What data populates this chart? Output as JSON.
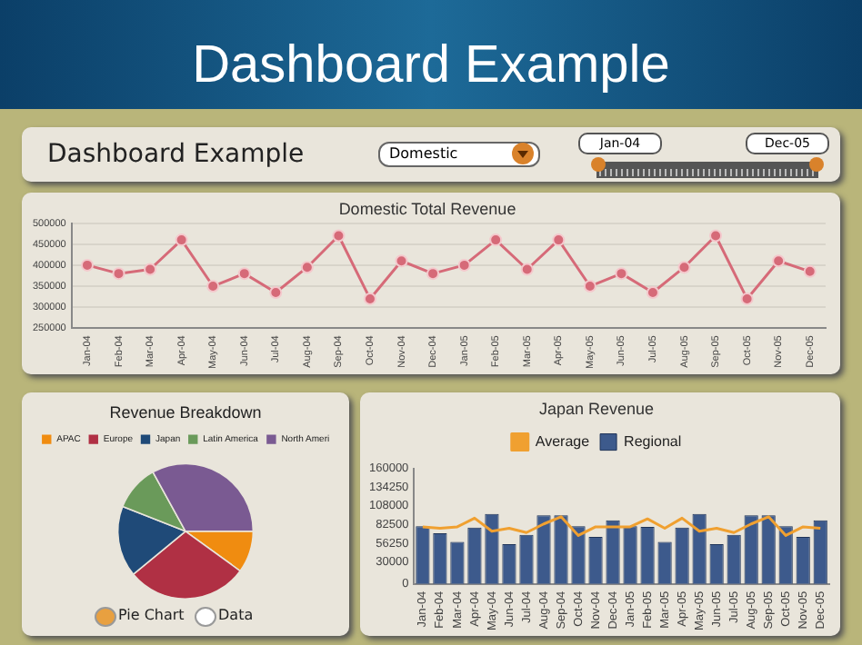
{
  "chart_data": [
    {
      "type": "other",
      "title": "Dashboard Example",
      "annotations": [
        "Dashboard Example",
        "Domestic",
        "Jan-04",
        "Dec-05"
      ]
    },
    {
      "type": "line",
      "title": "Domestic Total Revenue",
      "categories": [
        "Jan-04",
        "Feb-04",
        "Mar-04",
        "Apr-04",
        "May-04",
        "Jun-04",
        "Jul-04",
        "Aug-04",
        "Sep-04",
        "Oct-04",
        "Nov-04",
        "Dec-04",
        "Jan-05",
        "Feb-05",
        "Mar-05",
        "Apr-05",
        "May-05",
        "Jun-05",
        "Jul-05",
        "Aug-05",
        "Sep-05",
        "Oct-05",
        "Nov-05",
        "Dec-05"
      ],
      "values": [
        400000,
        380000,
        390000,
        460000,
        350000,
        380000,
        335000,
        395000,
        470000,
        320000,
        410000,
        380000,
        400000,
        460000,
        390000,
        460000,
        350000,
        380000,
        335000,
        395000,
        470000,
        320000,
        410000,
        385000
      ],
      "color": "#d66a78",
      "marker": "circle",
      "grid": "y",
      "ylim": [
        250000,
        500000
      ],
      "yticks": [
        250000,
        300000,
        350000,
        400000,
        450000,
        500000
      ]
    },
    {
      "type": "pie",
      "title": "Revenue Breakdown",
      "categories": [
        "APAC",
        "Europe",
        "Japan",
        "Latin America",
        "North Ameri"
      ],
      "values": [
        10,
        29,
        17,
        11,
        33
      ],
      "colors": [
        "#f08c10",
        "#b03044",
        "#1f4a78",
        "#6a9a5a",
        "#7a5a92"
      ],
      "legend": "top",
      "annotations": [
        "Pie Chart",
        "Data"
      ]
    },
    {
      "type": "bar",
      "title": "Japan Revenue",
      "categories": [
        "Jan-04",
        "Feb-04",
        "Mar-04",
        "Apr-04",
        "May-04",
        "Jun-04",
        "Jul-04",
        "Aug-04",
        "Sep-04",
        "Oct-04",
        "Nov-04",
        "Dec-04",
        "Jan-05",
        "Feb-05",
        "Mar-05",
        "Apr-05",
        "May-05",
        "Jun-05",
        "Jul-05",
        "Aug-05",
        "Sep-05",
        "Oct-05",
        "Nov-05",
        "Dec-05"
      ],
      "series": [
        {
          "name": "Average",
          "type": "line",
          "color": "#f0a030",
          "values": [
            79000,
            77000,
            79000,
            91000,
            73000,
            77000,
            71000,
            83000,
            93000,
            67000,
            79000,
            79000,
            79000,
            90000,
            77000,
            91000,
            73000,
            77000,
            71000,
            83000,
            93000,
            67000,
            79000,
            77000
          ]
        },
        {
          "name": "Regional",
          "type": "bar",
          "color": "#3d5a8c",
          "values": [
            80000,
            70000,
            58000,
            78000,
            97000,
            55000,
            68000,
            95000,
            95000,
            80000,
            65000,
            88000,
            80000,
            79000,
            58000,
            78000,
            97000,
            55000,
            68000,
            95000,
            95000,
            80000,
            65000,
            88000
          ]
        }
      ],
      "marker": "none",
      "legend": "top",
      "ylim": [
        0,
        160000
      ],
      "yticks": [
        0,
        30000,
        56250,
        82500,
        108000,
        134250,
        160000
      ]
    }
  ]
}
